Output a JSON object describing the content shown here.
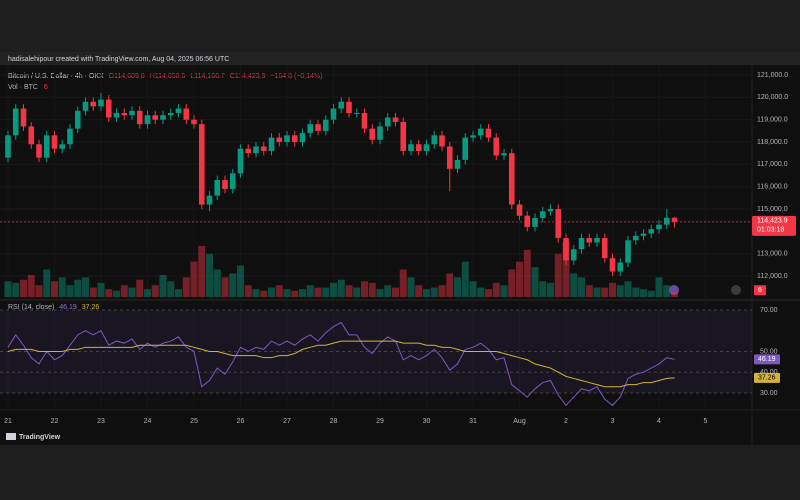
{
  "header": "hadisalehipour created with TradingView.com, Aug 04, 2025 06:56 UTC",
  "footer": "TradingView",
  "chart_data": {
    "type": "candlestick",
    "title": "Bitcoin / U.S. Dollar · 4h · OKX",
    "legend_values": [
      "O114,609.8",
      "H114,650.5",
      "L114,166.7",
      "C114,423.9",
      "−164.8 (−0.14%)"
    ],
    "volume_title": "Vol · BTC",
    "x_labels": [
      "21",
      "22",
      "23",
      "24",
      "25",
      "26",
      "27",
      "28",
      "29",
      "30",
      "31",
      "Aug",
      "2",
      "3",
      "4",
      "5"
    ],
    "open": [
      117300,
      118300,
      119500,
      118700,
      117900,
      117300,
      118300,
      117700,
      117900,
      118600,
      119400,
      119800,
      119600,
      119900,
      119100,
      119300,
      119200,
      119400,
      118800,
      119200,
      119000,
      119200,
      119300,
      119500,
      119000,
      118800,
      115200,
      115600,
      116300,
      115900,
      116600,
      117700,
      117500,
      117800,
      117600,
      118200,
      118000,
      118300,
      118000,
      118400,
      118800,
      118500,
      119000,
      119500,
      119800,
      119300,
      119300,
      118600,
      118100,
      118700,
      119100,
      118900,
      117600,
      117900,
      117600,
      117900,
      118300,
      117800,
      116800,
      117200,
      118200,
      118300,
      118600,
      118200,
      117400,
      117500,
      115200,
      114700,
      114200,
      114600,
      114900,
      115000,
      113700,
      112700,
      113200,
      113700,
      113500,
      113700,
      112800,
      112200,
      112600,
      113600,
      113800,
      113900,
      114100,
      114300,
      114609.8
    ],
    "high": [
      118500,
      119700,
      119700,
      118900,
      118100,
      118500,
      118500,
      118100,
      118800,
      119600,
      120000,
      120000,
      120200,
      120100,
      119500,
      119500,
      119600,
      119600,
      119400,
      119400,
      119400,
      119500,
      119700,
      119700,
      119200,
      119000,
      115800,
      116500,
      116500,
      116800,
      117900,
      117900,
      118000,
      118000,
      118400,
      118400,
      118500,
      118500,
      118600,
      119000,
      119000,
      119200,
      119700,
      120000,
      120000,
      119500,
      119500,
      118800,
      118900,
      119300,
      119300,
      119100,
      118100,
      118100,
      118100,
      118500,
      118500,
      118000,
      117400,
      118400,
      118500,
      118800,
      118800,
      118400,
      117700,
      117700,
      115400,
      114900,
      114800,
      115100,
      115200,
      115200,
      113900,
      113400,
      113900,
      113900,
      113900,
      113900,
      113000,
      112800,
      113800,
      114000,
      114100,
      114300,
      114500,
      115000,
      114650.5
    ],
    "low": [
      117100,
      118100,
      118500,
      117700,
      117100,
      117100,
      117500,
      117500,
      117700,
      118400,
      119200,
      119400,
      119400,
      118900,
      118900,
      119000,
      119000,
      118600,
      118600,
      118800,
      118800,
      119000,
      119100,
      118800,
      118600,
      115000,
      114900,
      115400,
      115700,
      115700,
      116400,
      117300,
      117300,
      117400,
      117400,
      117800,
      117800,
      117800,
      117800,
      118200,
      118300,
      118300,
      118800,
      119300,
      119100,
      119100,
      118400,
      117900,
      117900,
      118500,
      118700,
      117400,
      117400,
      117400,
      117400,
      117700,
      117600,
      115800,
      116600,
      117000,
      118000,
      118100,
      118000,
      117200,
      117200,
      115000,
      114500,
      114000,
      114000,
      114400,
      114700,
      113500,
      112500,
      112500,
      113000,
      113300,
      113300,
      112600,
      112000,
      112000,
      112400,
      113400,
      113600,
      113700,
      113900,
      114100,
      114166.7
    ],
    "close": [
      118300,
      119500,
      118700,
      117900,
      117300,
      118300,
      117700,
      117900,
      118600,
      119400,
      119800,
      119600,
      119900,
      119100,
      119300,
      119200,
      119400,
      118800,
      119200,
      119000,
      119200,
      119300,
      119500,
      119000,
      118800,
      115200,
      115600,
      116300,
      115900,
      116600,
      117700,
      117500,
      117800,
      117600,
      118200,
      118000,
      118300,
      118000,
      118400,
      118800,
      118500,
      119000,
      119500,
      119800,
      119300,
      119300,
      118600,
      118100,
      118700,
      119100,
      118900,
      117600,
      117900,
      117600,
      117900,
      118300,
      117800,
      116800,
      117200,
      118200,
      118300,
      118600,
      118200,
      117400,
      117500,
      115200,
      114700,
      114200,
      114600,
      114900,
      115000,
      113700,
      112700,
      113200,
      113700,
      113500,
      113700,
      112800,
      112200,
      112600,
      113600,
      113800,
      113900,
      114100,
      114300,
      114609.8,
      114423.9
    ],
    "volume": [
      20,
      18,
      22,
      28,
      15,
      35,
      20,
      25,
      15,
      22,
      25,
      12,
      18,
      10,
      8,
      15,
      12,
      22,
      10,
      15,
      28,
      20,
      10,
      25,
      45,
      65,
      55,
      35,
      25,
      30,
      40,
      15,
      10,
      8,
      12,
      15,
      10,
      8,
      10,
      15,
      12,
      12,
      18,
      22,
      15,
      12,
      20,
      18,
      10,
      15,
      12,
      35,
      25,
      15,
      10,
      12,
      15,
      30,
      25,
      45,
      20,
      12,
      10,
      18,
      15,
      35,
      45,
      60,
      38,
      20,
      18,
      55,
      70,
      30,
      25,
      15,
      12,
      12,
      18,
      15,
      20,
      12,
      10,
      8,
      25,
      15,
      6
    ],
    "up_color": "#089981",
    "down_color": "#f23645",
    "ylim": [
      111060,
      121450
    ],
    "yticks": [
      {
        "value": 121000,
        "label": "121,000.0"
      },
      {
        "value": 120000,
        "label": "120,000.0"
      },
      {
        "value": 119000,
        "label": "119,000.0"
      },
      {
        "value": 118000,
        "label": "118,000.0"
      },
      {
        "value": 117000,
        "label": "117,000.0"
      },
      {
        "value": 116000,
        "label": "116,000.0"
      },
      {
        "value": 115000,
        "label": "115,000.0"
      },
      {
        "value": 113000,
        "label": "113,000.0"
      },
      {
        "value": 112000,
        "label": "112,000.0"
      }
    ],
    "last_price": {
      "value": 114423.9,
      "label": "114,423.9"
    },
    "countdown": "01:03:18",
    "rsi": {
      "title": "RSI (14, close)",
      "color": "#7e57c2",
      "ma_color": "#d4b23a",
      "values": [
        52,
        58,
        53,
        47,
        44,
        50,
        46,
        48,
        53,
        58,
        60,
        58,
        60,
        53,
        55,
        54,
        56,
        51,
        54,
        52,
        54,
        55,
        57,
        52,
        50,
        33,
        36,
        42,
        39,
        45,
        52,
        50,
        52,
        51,
        55,
        53,
        55,
        53,
        56,
        58,
        55,
        59,
        62,
        64,
        58,
        58,
        52,
        49,
        54,
        57,
        55,
        46,
        48,
        46,
        48,
        51,
        47,
        41,
        44,
        51,
        52,
        54,
        51,
        46,
        47,
        34,
        31,
        28,
        32,
        35,
        36,
        29,
        24,
        28,
        32,
        31,
        33,
        27,
        24,
        28,
        37,
        39,
        40,
        42,
        44,
        47,
        46.19
      ],
      "ma_values": [
        50,
        51,
        51,
        51,
        50,
        50,
        50,
        50,
        51,
        51,
        52,
        52,
        52,
        52,
        52,
        52,
        52,
        53,
        53,
        53,
        53,
        53,
        53,
        53,
        52,
        51,
        50,
        50,
        49,
        48,
        48,
        48,
        48,
        47,
        47,
        48,
        48,
        49,
        51,
        52,
        53,
        53,
        54,
        55,
        55,
        55,
        55,
        55,
        55,
        55,
        55,
        54,
        54,
        54,
        53,
        53,
        52,
        52,
        51,
        50,
        50,
        50,
        50,
        50,
        49,
        48,
        47,
        46,
        44,
        43,
        42,
        40,
        38,
        37,
        36,
        35,
        34,
        33,
        33,
        33,
        34,
        34,
        35,
        35,
        36,
        37,
        37.26
      ],
      "ylim": [
        26.6,
        72.4
      ],
      "yticks": [
        {
          "value": 70,
          "label": "70.00"
        },
        {
          "value": 50,
          "label": "50.00"
        },
        {
          "value": 40,
          "label": "40.00"
        },
        {
          "value": 30,
          "label": "30.00"
        }
      ]
    }
  }
}
